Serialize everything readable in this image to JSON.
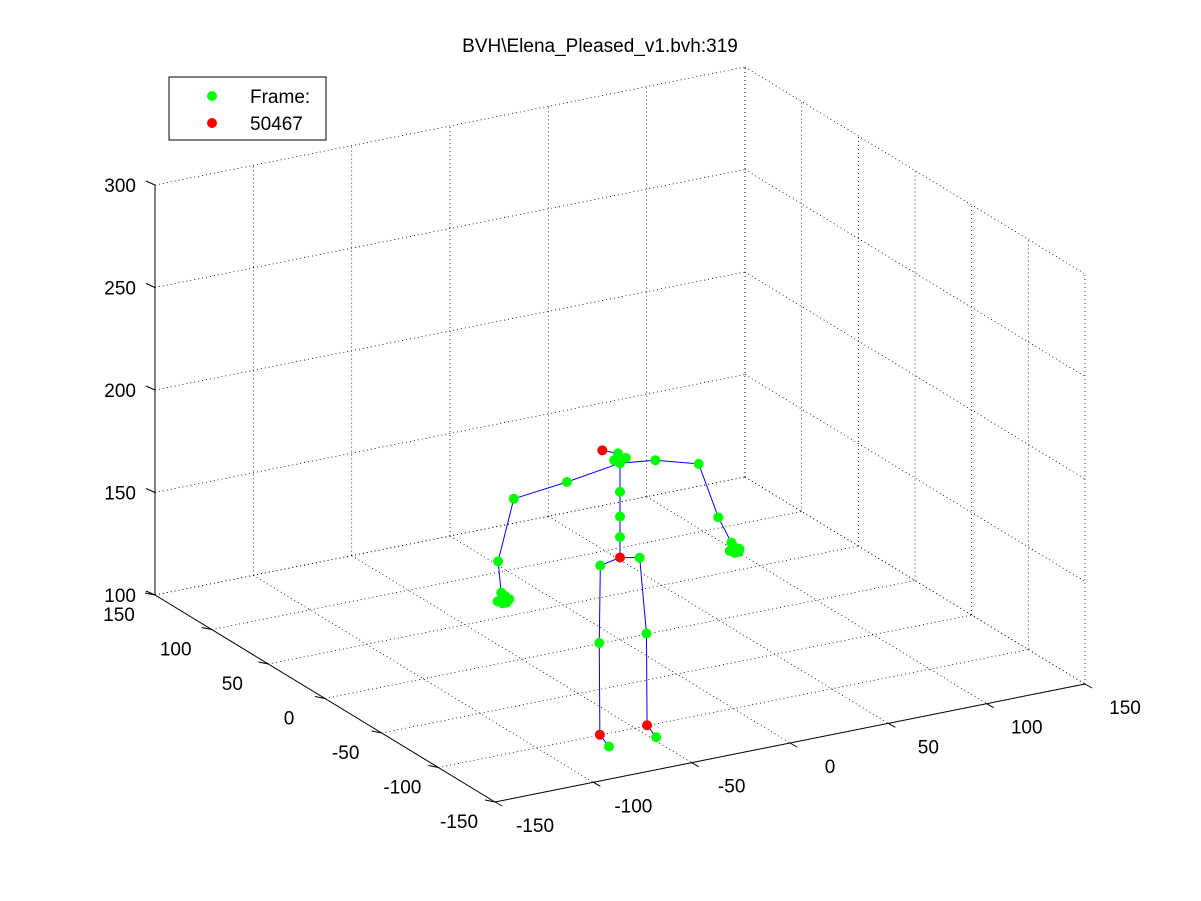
{
  "chart_data": {
    "type": "scatter",
    "title": "BVH\\Elena_Pleased_v1.bvh:319",
    "xlim": [
      -150,
      150
    ],
    "ylim": [
      -150,
      150
    ],
    "zlim": [
      100,
      300
    ],
    "x_ticks": [
      "-150",
      "-100",
      "-50",
      "0",
      "50",
      "100",
      "150"
    ],
    "y_ticks": [
      "-150",
      "-100",
      "-50",
      "0",
      "50",
      "100",
      "150"
    ],
    "z_ticks": [
      "100",
      "150",
      "200",
      "250",
      "300"
    ],
    "grid": true,
    "legend": {
      "placement": "top-left",
      "entries": [
        {
          "label": "Frame:",
          "color": "#00ff00"
        },
        {
          "label": "50467",
          "color": "#ff0000"
        }
      ]
    },
    "colors": {
      "joint": "#00ff00",
      "highlight": "#ff0000",
      "bone": "#0000ff",
      "grid": "#000000"
    },
    "joints": [
      {
        "name": "hips",
        "p": [
          0,
          0,
          140
        ]
      },
      {
        "name": "spine",
        "p": [
          0,
          0,
          150
        ]
      },
      {
        "name": "spine1",
        "p": [
          0,
          0,
          160
        ]
      },
      {
        "name": "spine2",
        "p": [
          0,
          0,
          172
        ]
      },
      {
        "name": "neck",
        "p": [
          0,
          0,
          186
        ]
      },
      {
        "name": "neck_l",
        "p": [
          -3,
          0,
          188
        ]
      },
      {
        "name": "neck_r",
        "p": [
          3,
          0,
          188
        ]
      },
      {
        "name": "head_top",
        "p": [
          -1,
          0,
          191
        ]
      },
      {
        "name": "head",
        "p": [
          -9,
          0,
          194
        ]
      },
      {
        "name": "l_clavicle",
        "p": [
          -27,
          0,
          182
        ]
      },
      {
        "name": "l_upperarm",
        "p": [
          -54,
          0,
          179
        ]
      },
      {
        "name": "l_forearm",
        "p": [
          -62,
          0,
          150
        ]
      },
      {
        "name": "l_hand",
        "p": [
          -65,
          -8,
          138
        ]
      },
      {
        "name": "r_clavicle",
        "p": [
          18,
          0,
          184
        ]
      },
      {
        "name": "r_upperarm",
        "p": [
          40,
          0,
          178
        ]
      },
      {
        "name": "r_forearm",
        "p": [
          50,
          0,
          150
        ]
      },
      {
        "name": "r_hand",
        "p": [
          52,
          -8,
          140
        ]
      },
      {
        "name": "l_upleg",
        "p": [
          -10,
          0,
          138
        ]
      },
      {
        "name": "l_leg",
        "p": [
          -14,
          -6,
          103
        ]
      },
      {
        "name": "l_foot",
        "p": [
          -16,
          -10,
          60
        ]
      },
      {
        "name": "l_toe",
        "p": [
          -20,
          -25,
          60
        ]
      },
      {
        "name": "r_upleg",
        "p": [
          10,
          0,
          138
        ]
      },
      {
        "name": "r_leg",
        "p": [
          10,
          -6,
          103
        ]
      },
      {
        "name": "r_foot",
        "p": [
          8,
          -10,
          60
        ]
      },
      {
        "name": "r_toe",
        "p": [
          4,
          -25,
          60
        ]
      }
    ],
    "bones": [
      [
        0,
        1
      ],
      [
        1,
        2
      ],
      [
        2,
        3
      ],
      [
        3,
        4
      ],
      [
        4,
        5
      ],
      [
        4,
        6
      ],
      [
        4,
        7
      ],
      [
        7,
        8
      ],
      [
        4,
        9
      ],
      [
        9,
        10
      ],
      [
        10,
        11
      ],
      [
        11,
        12
      ],
      [
        4,
        13
      ],
      [
        13,
        14
      ],
      [
        14,
        15
      ],
      [
        15,
        16
      ],
      [
        0,
        17
      ],
      [
        17,
        18
      ],
      [
        18,
        19
      ],
      [
        19,
        20
      ],
      [
        0,
        21
      ],
      [
        21,
        22
      ],
      [
        22,
        23
      ],
      [
        23,
        24
      ]
    ],
    "highlighted_joints": [
      8,
      0,
      19,
      23
    ],
    "hand_fingers": [
      {
        "joint": 12,
        "offsets": [
          [
            -3,
            -2,
            -3
          ],
          [
            -1,
            -3,
            -4
          ],
          [
            1,
            -3,
            -4
          ],
          [
            3,
            -2,
            -3
          ],
          [
            2,
            0,
            -2
          ]
        ]
      },
      {
        "joint": 16,
        "offsets": [
          [
            -2,
            -2,
            -3
          ],
          [
            0,
            -3,
            -4
          ],
          [
            2,
            -3,
            -4
          ],
          [
            3,
            -2,
            -3
          ],
          [
            1,
            0,
            -2
          ]
        ]
      }
    ]
  }
}
